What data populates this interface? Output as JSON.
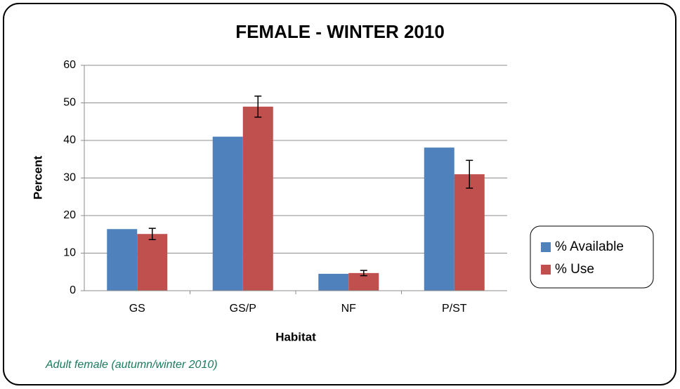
{
  "chart_data": {
    "type": "bar",
    "title": "FEMALE - WINTER 2010",
    "x_label": "Habitat",
    "y_label": "Percent",
    "categories": [
      "GS",
      "GS/P",
      "NF",
      "P/ST"
    ],
    "series": [
      {
        "name": "% Available",
        "color": "#4f81bd",
        "values": [
          16.4,
          41,
          4.5,
          38.1
        ]
      },
      {
        "name": "% Use",
        "color": "#c0504d",
        "values": [
          15.1,
          49,
          4.7,
          31
        ],
        "errors": [
          1.5,
          2.8,
          0.7,
          3.7
        ]
      }
    ],
    "ylim": [
      0,
      60
    ],
    "yticks": [
      0,
      10,
      20,
      30,
      40,
      50,
      60
    ],
    "grid": true,
    "legend": "right",
    "caption": "Adult female (autumn/winter 2010)"
  }
}
